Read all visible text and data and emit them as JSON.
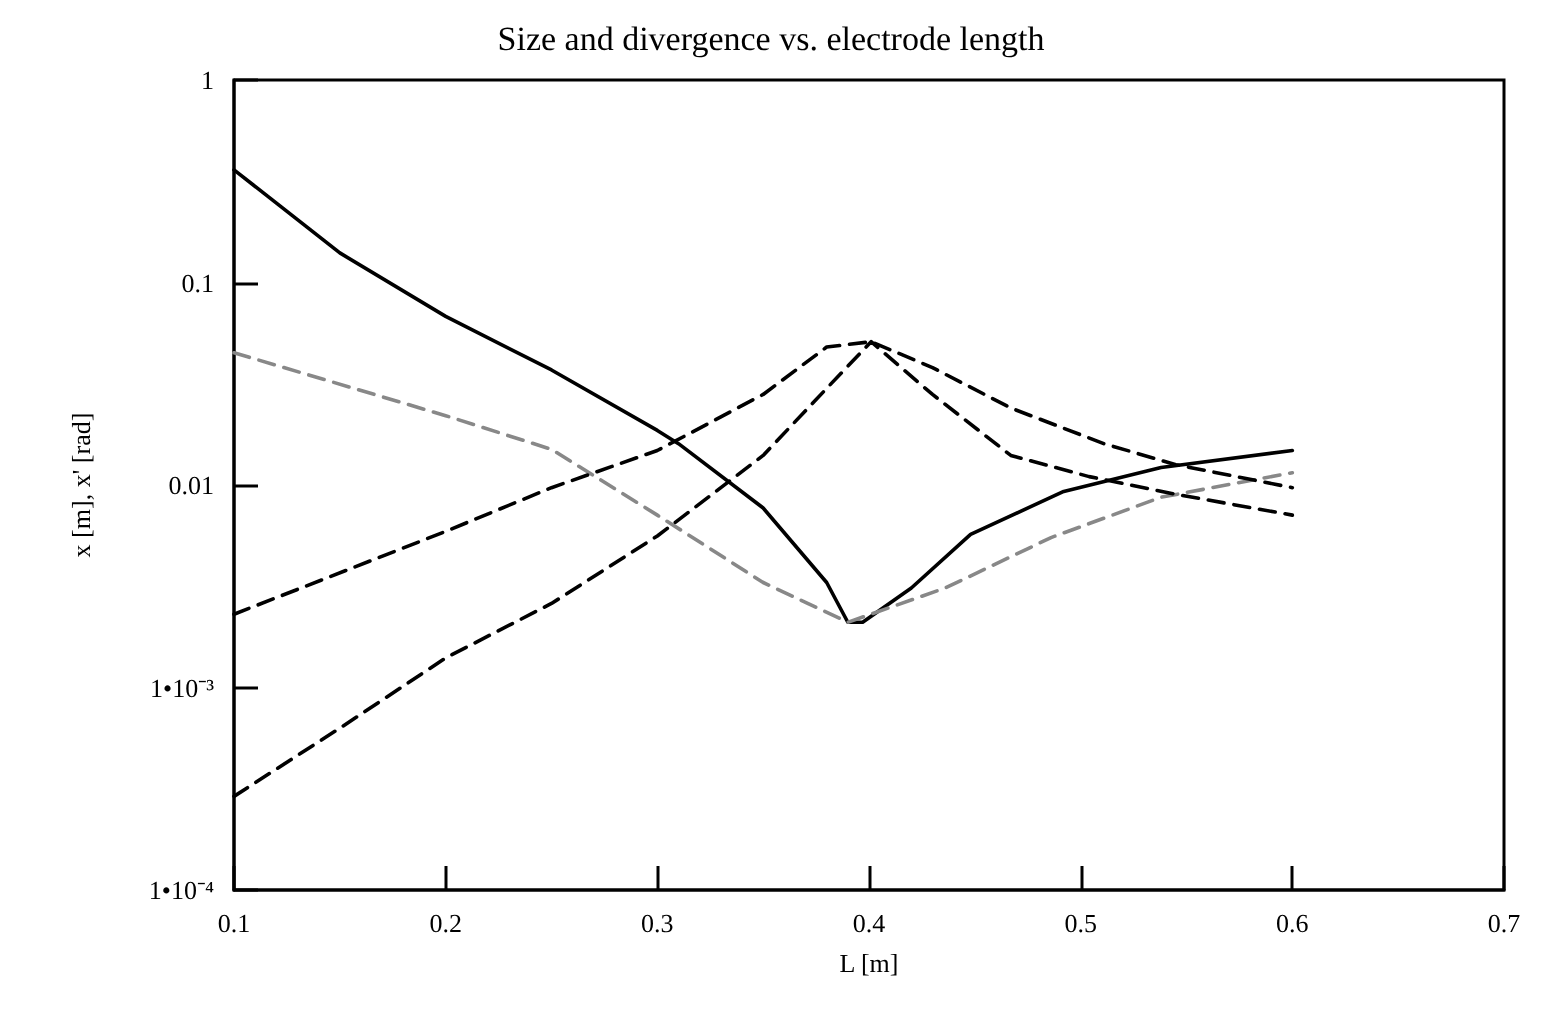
{
  "chart_data": {
    "type": "line",
    "title": "Size and divergence vs. electrode length",
    "xlabel": "L [m]",
    "ylabel": "x [m], x' [rad]",
    "log": "y",
    "grid": false,
    "marker": "none",
    "xlim": [
      0.1,
      0.7
    ],
    "xticks": [
      0.1,
      0.2,
      0.3,
      0.4,
      0.5,
      0.6,
      0.7
    ],
    "ylim": [
      0.0001,
      1
    ],
    "yticks": [
      {
        "value": 0.0001,
        "label": "1•10⁻⁴"
      },
      {
        "value": 0.001,
        "label": "1•10⁻³"
      },
      0.01,
      0.1,
      1
    ],
    "series": [
      {
        "color": "#000000",
        "line_style": "solid",
        "x": [
          0.1,
          0.15,
          0.2,
          0.25,
          0.3,
          0.31,
          0.35,
          0.38,
          0.39,
          0.397,
          0.42,
          0.448,
          0.492,
          0.538,
          0.6
        ],
        "values": [
          0.36,
          0.14,
          0.068,
          0.037,
          0.0186,
          0.016,
          0.0077,
          0.0033,
          0.0021,
          0.0021,
          0.0031,
          0.0057,
          0.0093,
          0.0122,
          0.0148
        ]
      },
      {
        "color": "#888888",
        "line_style": "dashed",
        "x": [
          0.1,
          0.2,
          0.25,
          0.3,
          0.35,
          0.39,
          0.436,
          0.486,
          0.538,
          0.6
        ],
        "values": [
          0.045,
          0.022,
          0.015,
          0.0071,
          0.0033,
          0.0021,
          0.0031,
          0.0055,
          0.0087,
          0.0115
        ]
      },
      {
        "color": "#000000",
        "line_style": "dashed",
        "x": [
          0.1,
          0.2,
          0.25,
          0.3,
          0.35,
          0.38,
          0.401,
          0.43,
          0.467,
          0.511,
          0.545,
          0.6
        ],
        "values": [
          0.0023,
          0.0059,
          0.0097,
          0.0148,
          0.028,
          0.048,
          0.051,
          0.038,
          0.024,
          0.016,
          0.0126,
          0.0097
        ]
      },
      {
        "color": "#000000",
        "line_style": "dashed",
        "x": [
          0.1,
          0.15,
          0.2,
          0.25,
          0.3,
          0.35,
          0.38,
          0.401,
          0.43,
          0.467,
          0.504,
          0.545,
          0.6
        ],
        "values": [
          0.00029,
          0.00063,
          0.0014,
          0.0026,
          0.0056,
          0.014,
          0.03,
          0.051,
          0.028,
          0.014,
          0.011,
          0.009,
          0.0071
        ]
      }
    ]
  }
}
